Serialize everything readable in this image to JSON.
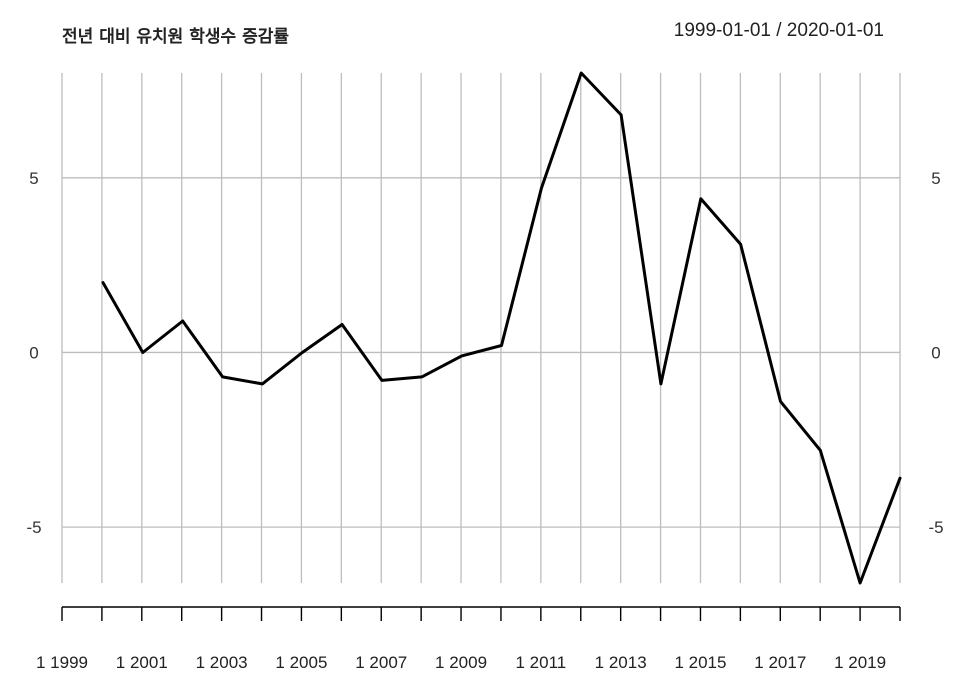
{
  "chart_data": {
    "type": "line",
    "title": "전년 대비 유치원 학생수 증감률",
    "date_range": "1999-01-01 / 2020-01-01",
    "x": [
      "2000",
      "2001",
      "2002",
      "2003",
      "2004",
      "2005",
      "2006",
      "2007",
      "2008",
      "2009",
      "2010",
      "2011",
      "2012",
      "2013",
      "2014",
      "2015",
      "2016",
      "2017",
      "2018",
      "2019",
      "2020"
    ],
    "values": [
      2.0,
      0.0,
      0.9,
      -0.7,
      -0.9,
      0.0,
      0.8,
      -0.8,
      -0.7,
      -0.1,
      0.2,
      4.7,
      8.0,
      6.8,
      -0.9,
      4.4,
      3.1,
      -1.4,
      -2.8,
      -6.6,
      -3.6
    ],
    "xlim": [
      "1999",
      "2020"
    ],
    "ylim": [
      -6.6,
      8.0
    ],
    "y_ticks": [
      -5,
      0,
      5
    ],
    "y_tick_labels": [
      "-5",
      "0",
      "5"
    ],
    "x_tick_labels": [
      "1 1999",
      "1 2001",
      "1 2003",
      "1 2005",
      "1 2007",
      "1 2009",
      "1 2011",
      "1 2013",
      "1 2015",
      "1 2017",
      "1 2019"
    ],
    "grid": true,
    "line_color": "#000000",
    "grid_color": "#bdbdbd"
  }
}
